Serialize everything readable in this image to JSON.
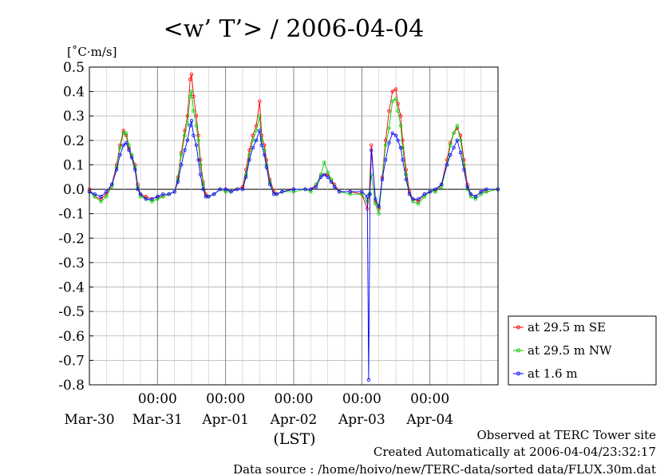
{
  "chart_data": {
    "type": "line",
    "title": "<w’ T’> / 2006-04-04",
    "ylabel": "[˚C·m/s]",
    "xlabel": "(LST)",
    "ylim": [
      -0.8,
      0.5
    ],
    "yticks": [
      "0.5",
      "0.4",
      "0.3",
      "0.2",
      "0.1",
      "0.0",
      "-0.1",
      "-0.2",
      "-0.3",
      "-0.4",
      "-0.5",
      "-0.6",
      "-0.7",
      "-0.8"
    ],
    "xlim_days": [
      -1.0,
      5.0
    ],
    "time_ticks": [
      {
        "day": 1,
        "label": "00:00"
      },
      {
        "day": 2,
        "label": "00:00"
      },
      {
        "day": 3,
        "label": "00:00"
      },
      {
        "day": 4,
        "label": "00:00"
      },
      {
        "day": 5,
        "label": "00:00"
      }
    ],
    "date_labels": [
      {
        "day": 0.5,
        "label": "Mar-30"
      },
      {
        "day": 1.5,
        "label": "Mar-31"
      },
      {
        "day": 2.5,
        "label": "Apr-01"
      },
      {
        "day": 3.5,
        "label": "Apr-02"
      },
      {
        "day": 4.5,
        "label": "Apr-03"
      },
      {
        "day": 5.5,
        "label": "Apr-04"
      }
    ],
    "series": [
      {
        "name": "at 29.5 m SE",
        "color": "#ff0000",
        "points": [
          [
            -1.0,
            0.0
          ],
          [
            -0.92,
            -0.03
          ],
          [
            -0.83,
            -0.04
          ],
          [
            -0.75,
            -0.02
          ],
          [
            -0.67,
            0.02
          ],
          [
            -0.6,
            0.1
          ],
          [
            -0.55,
            0.18
          ],
          [
            -0.5,
            0.24
          ],
          [
            -0.46,
            0.22
          ],
          [
            -0.42,
            0.17
          ],
          [
            -0.38,
            0.14
          ],
          [
            -0.33,
            0.1
          ],
          [
            -0.29,
            0.02
          ],
          [
            -0.25,
            -0.02
          ],
          [
            -0.17,
            -0.03
          ],
          [
            -0.08,
            -0.04
          ],
          [
            0.0,
            -0.03
          ],
          [
            0.08,
            -0.03
          ],
          [
            0.17,
            -0.02
          ],
          [
            0.25,
            -0.01
          ],
          [
            0.3,
            0.05
          ],
          [
            0.35,
            0.15
          ],
          [
            0.4,
            0.24
          ],
          [
            0.44,
            0.3
          ],
          [
            0.48,
            0.45
          ],
          [
            0.5,
            0.47
          ],
          [
            0.53,
            0.38
          ],
          [
            0.57,
            0.3
          ],
          [
            0.6,
            0.22
          ],
          [
            0.63,
            0.12
          ],
          [
            0.67,
            0.03
          ],
          [
            0.71,
            -0.02
          ],
          [
            0.75,
            -0.03
          ],
          [
            0.83,
            -0.02
          ],
          [
            0.92,
            0.0
          ],
          [
            1.0,
            0.0
          ],
          [
            1.08,
            -0.01
          ],
          [
            1.17,
            0.0
          ],
          [
            1.25,
            0.01
          ],
          [
            1.3,
            0.08
          ],
          [
            1.35,
            0.16
          ],
          [
            1.4,
            0.22
          ],
          [
            1.45,
            0.26
          ],
          [
            1.5,
            0.36
          ],
          [
            1.53,
            0.22
          ],
          [
            1.57,
            0.18
          ],
          [
            1.6,
            0.12
          ],
          [
            1.65,
            0.04
          ],
          [
            1.71,
            -0.01
          ],
          [
            1.75,
            -0.02
          ],
          [
            1.83,
            -0.01
          ],
          [
            2.0,
            0.0
          ],
          [
            2.17,
            0.0
          ],
          [
            2.25,
            0.0
          ],
          [
            2.33,
            0.02
          ],
          [
            2.4,
            0.06
          ],
          [
            2.5,
            0.06
          ],
          [
            2.55,
            0.04
          ],
          [
            2.6,
            0.02
          ],
          [
            2.67,
            -0.01
          ],
          [
            2.83,
            -0.01
          ],
          [
            3.0,
            -0.02
          ],
          [
            3.08,
            -0.08
          ],
          [
            3.11,
            -0.02
          ],
          [
            3.14,
            0.18
          ],
          [
            3.2,
            -0.05
          ],
          [
            3.25,
            -0.08
          ],
          [
            3.3,
            0.05
          ],
          [
            3.35,
            0.2
          ],
          [
            3.4,
            0.32
          ],
          [
            3.45,
            0.4
          ],
          [
            3.5,
            0.41
          ],
          [
            3.53,
            0.35
          ],
          [
            3.57,
            0.3
          ],
          [
            3.6,
            0.2
          ],
          [
            3.65,
            0.08
          ],
          [
            3.7,
            -0.01
          ],
          [
            3.75,
            -0.04
          ],
          [
            3.83,
            -0.05
          ],
          [
            3.92,
            -0.02
          ],
          [
            4.0,
            -0.01
          ],
          [
            4.08,
            -0.01
          ],
          [
            4.17,
            0.02
          ],
          [
            4.25,
            0.12
          ],
          [
            4.3,
            0.19
          ],
          [
            4.35,
            0.23
          ],
          [
            4.4,
            0.25
          ],
          [
            4.45,
            0.22
          ],
          [
            4.5,
            0.12
          ],
          [
            4.55,
            0.02
          ],
          [
            4.6,
            -0.02
          ],
          [
            4.67,
            -0.03
          ],
          [
            4.75,
            -0.01
          ],
          [
            4.83,
            -0.01
          ],
          [
            5.0,
            0.0
          ]
        ]
      },
      {
        "name": "at 29.5 m NW",
        "color": "#00cc00",
        "points": [
          [
            -1.0,
            -0.01
          ],
          [
            -0.92,
            -0.03
          ],
          [
            -0.83,
            -0.05
          ],
          [
            -0.75,
            -0.03
          ],
          [
            -0.67,
            0.01
          ],
          [
            -0.6,
            0.09
          ],
          [
            -0.55,
            0.17
          ],
          [
            -0.5,
            0.23
          ],
          [
            -0.46,
            0.23
          ],
          [
            -0.42,
            0.18
          ],
          [
            -0.38,
            0.14
          ],
          [
            -0.33,
            0.09
          ],
          [
            -0.29,
            0.01
          ],
          [
            -0.25,
            -0.03
          ],
          [
            -0.17,
            -0.04
          ],
          [
            -0.08,
            -0.05
          ],
          [
            0.0,
            -0.04
          ],
          [
            0.08,
            -0.03
          ],
          [
            0.17,
            -0.02
          ],
          [
            0.25,
            -0.01
          ],
          [
            0.3,
            0.04
          ],
          [
            0.35,
            0.14
          ],
          [
            0.4,
            0.22
          ],
          [
            0.44,
            0.27
          ],
          [
            0.48,
            0.38
          ],
          [
            0.5,
            0.4
          ],
          [
            0.53,
            0.32
          ],
          [
            0.57,
            0.26
          ],
          [
            0.6,
            0.2
          ],
          [
            0.63,
            0.1
          ],
          [
            0.67,
            0.02
          ],
          [
            0.71,
            -0.03
          ],
          [
            0.75,
            -0.03
          ],
          [
            0.83,
            -0.02
          ],
          [
            0.92,
            0.0
          ],
          [
            1.0,
            -0.01
          ],
          [
            1.08,
            -0.01
          ],
          [
            1.17,
            0.0
          ],
          [
            1.25,
            0.0
          ],
          [
            1.3,
            0.06
          ],
          [
            1.35,
            0.14
          ],
          [
            1.4,
            0.2
          ],
          [
            1.45,
            0.24
          ],
          [
            1.5,
            0.3
          ],
          [
            1.53,
            0.2
          ],
          [
            1.57,
            0.16
          ],
          [
            1.6,
            0.1
          ],
          [
            1.65,
            0.03
          ],
          [
            1.71,
            -0.02
          ],
          [
            1.75,
            -0.02
          ],
          [
            1.83,
            -0.01
          ],
          [
            2.0,
            -0.01
          ],
          [
            2.17,
            0.0
          ],
          [
            2.25,
            -0.01
          ],
          [
            2.33,
            0.02
          ],
          [
            2.4,
            0.06
          ],
          [
            2.45,
            0.11
          ],
          [
            2.5,
            0.07
          ],
          [
            2.55,
            0.04
          ],
          [
            2.6,
            0.01
          ],
          [
            2.67,
            -0.01
          ],
          [
            2.83,
            -0.02
          ],
          [
            3.0,
            -0.02
          ],
          [
            3.08,
            -0.05
          ],
          [
            3.11,
            -0.02
          ],
          [
            3.14,
            0.06
          ],
          [
            3.2,
            -0.06
          ],
          [
            3.25,
            -0.1
          ],
          [
            3.3,
            0.04
          ],
          [
            3.35,
            0.18
          ],
          [
            3.4,
            0.25
          ],
          [
            3.45,
            0.36
          ],
          [
            3.5,
            0.37
          ],
          [
            3.53,
            0.32
          ],
          [
            3.57,
            0.26
          ],
          [
            3.6,
            0.17
          ],
          [
            3.65,
            0.06
          ],
          [
            3.7,
            -0.02
          ],
          [
            3.75,
            -0.05
          ],
          [
            3.83,
            -0.06
          ],
          [
            3.92,
            -0.03
          ],
          [
            4.0,
            -0.01
          ],
          [
            4.08,
            -0.01
          ],
          [
            4.17,
            0.01
          ],
          [
            4.25,
            0.1
          ],
          [
            4.3,
            0.18
          ],
          [
            4.35,
            0.23
          ],
          [
            4.4,
            0.26
          ],
          [
            4.45,
            0.2
          ],
          [
            4.5,
            0.1
          ],
          [
            4.55,
            0.0
          ],
          [
            4.6,
            -0.03
          ],
          [
            4.67,
            -0.04
          ],
          [
            4.75,
            -0.02
          ],
          [
            4.83,
            -0.01
          ],
          [
            5.0,
            0.0
          ]
        ]
      },
      {
        "name": "at 1.6 m",
        "color": "#0000ff",
        "points": [
          [
            -1.0,
            -0.01
          ],
          [
            -0.92,
            -0.02
          ],
          [
            -0.83,
            -0.03
          ],
          [
            -0.75,
            -0.01
          ],
          [
            -0.67,
            0.02
          ],
          [
            -0.6,
            0.08
          ],
          [
            -0.55,
            0.14
          ],
          [
            -0.5,
            0.18
          ],
          [
            -0.46,
            0.19
          ],
          [
            -0.42,
            0.16
          ],
          [
            -0.38,
            0.13
          ],
          [
            -0.33,
            0.08
          ],
          [
            -0.29,
            0.0
          ],
          [
            -0.25,
            -0.02
          ],
          [
            -0.17,
            -0.04
          ],
          [
            -0.08,
            -0.04
          ],
          [
            0.0,
            -0.03
          ],
          [
            0.08,
            -0.02
          ],
          [
            0.17,
            -0.02
          ],
          [
            0.25,
            -0.01
          ],
          [
            0.3,
            0.03
          ],
          [
            0.35,
            0.1
          ],
          [
            0.4,
            0.16
          ],
          [
            0.44,
            0.2
          ],
          [
            0.48,
            0.26
          ],
          [
            0.5,
            0.28
          ],
          [
            0.53,
            0.22
          ],
          [
            0.57,
            0.18
          ],
          [
            0.6,
            0.12
          ],
          [
            0.63,
            0.06
          ],
          [
            0.67,
            0.0
          ],
          [
            0.71,
            -0.03
          ],
          [
            0.75,
            -0.03
          ],
          [
            0.83,
            -0.02
          ],
          [
            0.92,
            0.0
          ],
          [
            1.0,
            0.0
          ],
          [
            1.08,
            -0.01
          ],
          [
            1.17,
            0.0
          ],
          [
            1.25,
            0.0
          ],
          [
            1.3,
            0.05
          ],
          [
            1.35,
            0.12
          ],
          [
            1.4,
            0.17
          ],
          [
            1.45,
            0.2
          ],
          [
            1.5,
            0.24
          ],
          [
            1.53,
            0.18
          ],
          [
            1.57,
            0.14
          ],
          [
            1.6,
            0.09
          ],
          [
            1.65,
            0.02
          ],
          [
            1.71,
            -0.02
          ],
          [
            1.75,
            -0.02
          ],
          [
            1.83,
            -0.01
          ],
          [
            2.0,
            0.0
          ],
          [
            2.17,
            0.0
          ],
          [
            2.25,
            0.0
          ],
          [
            2.33,
            0.01
          ],
          [
            2.4,
            0.05
          ],
          [
            2.45,
            0.06
          ],
          [
            2.5,
            0.05
          ],
          [
            2.55,
            0.03
          ],
          [
            2.6,
            0.01
          ],
          [
            2.67,
            -0.01
          ],
          [
            2.83,
            -0.01
          ],
          [
            3.0,
            -0.01
          ],
          [
            3.08,
            -0.03
          ],
          [
            3.1,
            -0.78
          ],
          [
            3.12,
            -0.02
          ],
          [
            3.14,
            0.16
          ],
          [
            3.2,
            -0.04
          ],
          [
            3.25,
            -0.07
          ],
          [
            3.3,
            0.04
          ],
          [
            3.35,
            0.12
          ],
          [
            3.4,
            0.19
          ],
          [
            3.45,
            0.23
          ],
          [
            3.5,
            0.22
          ],
          [
            3.53,
            0.2
          ],
          [
            3.57,
            0.17
          ],
          [
            3.6,
            0.12
          ],
          [
            3.65,
            0.04
          ],
          [
            3.7,
            -0.02
          ],
          [
            3.75,
            -0.04
          ],
          [
            3.83,
            -0.04
          ],
          [
            3.92,
            -0.02
          ],
          [
            4.0,
            -0.01
          ],
          [
            4.08,
            0.0
          ],
          [
            4.17,
            0.02
          ],
          [
            4.25,
            0.1
          ],
          [
            4.3,
            0.14
          ],
          [
            4.35,
            0.17
          ],
          [
            4.4,
            0.2
          ],
          [
            4.45,
            0.15
          ],
          [
            4.5,
            0.08
          ],
          [
            4.55,
            0.01
          ],
          [
            4.6,
            -0.02
          ],
          [
            4.67,
            -0.03
          ],
          [
            4.75,
            -0.01
          ],
          [
            4.83,
            0.0
          ],
          [
            5.0,
            0.0
          ]
        ]
      }
    ],
    "grid": true,
    "legend_position": "bottom-right-outside"
  },
  "footer": {
    "line1": "Observed at TERC Tower site",
    "line2": "Created Automatically at 2006-04-04/23:32:17",
    "line3": "Data source : /home/hoivo/new/TERC-data/sorted  data/FLUX.30m.dat"
  }
}
